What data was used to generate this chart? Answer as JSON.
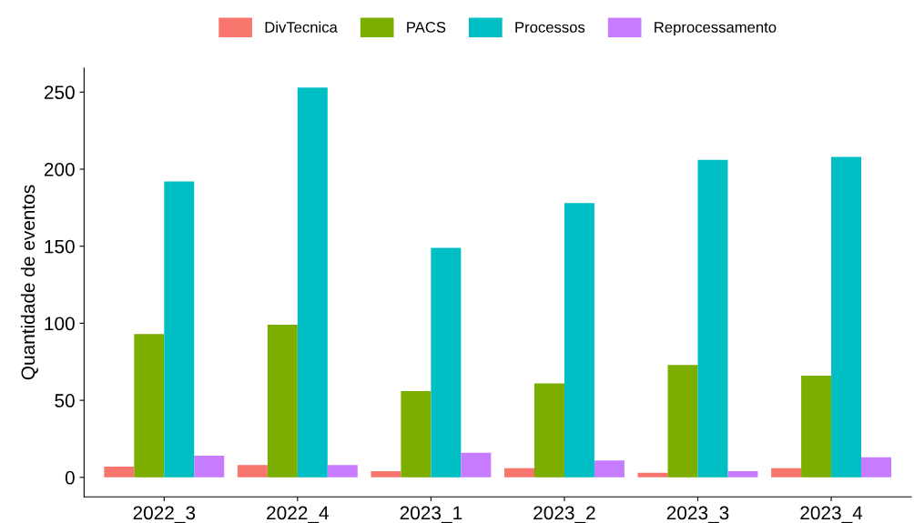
{
  "chart_data": {
    "type": "bar",
    "ylabel": "Quantidade de eventos",
    "categories": [
      "2022_3",
      "2022_4",
      "2023_1",
      "2023_2",
      "2023_3",
      "2023_4"
    ],
    "series": [
      {
        "name": "DivTecnica",
        "color": "#f8766d",
        "values": [
          7,
          8,
          4,
          6,
          3,
          6
        ]
      },
      {
        "name": "PACS",
        "color": "#7cae00",
        "values": [
          93,
          99,
          56,
          61,
          73,
          66
        ]
      },
      {
        "name": "Processos",
        "color": "#00bfc4",
        "values": [
          192,
          253,
          149,
          178,
          206,
          208
        ]
      },
      {
        "name": "Reprocessamento",
        "color": "#c77cff",
        "values": [
          14,
          8,
          16,
          11,
          4,
          13
        ]
      }
    ],
    "ylim": [
      -12.65,
      265.65
    ],
    "yticks": [
      0,
      50,
      100,
      150,
      200,
      250
    ],
    "grid": false,
    "legend": "top"
  }
}
